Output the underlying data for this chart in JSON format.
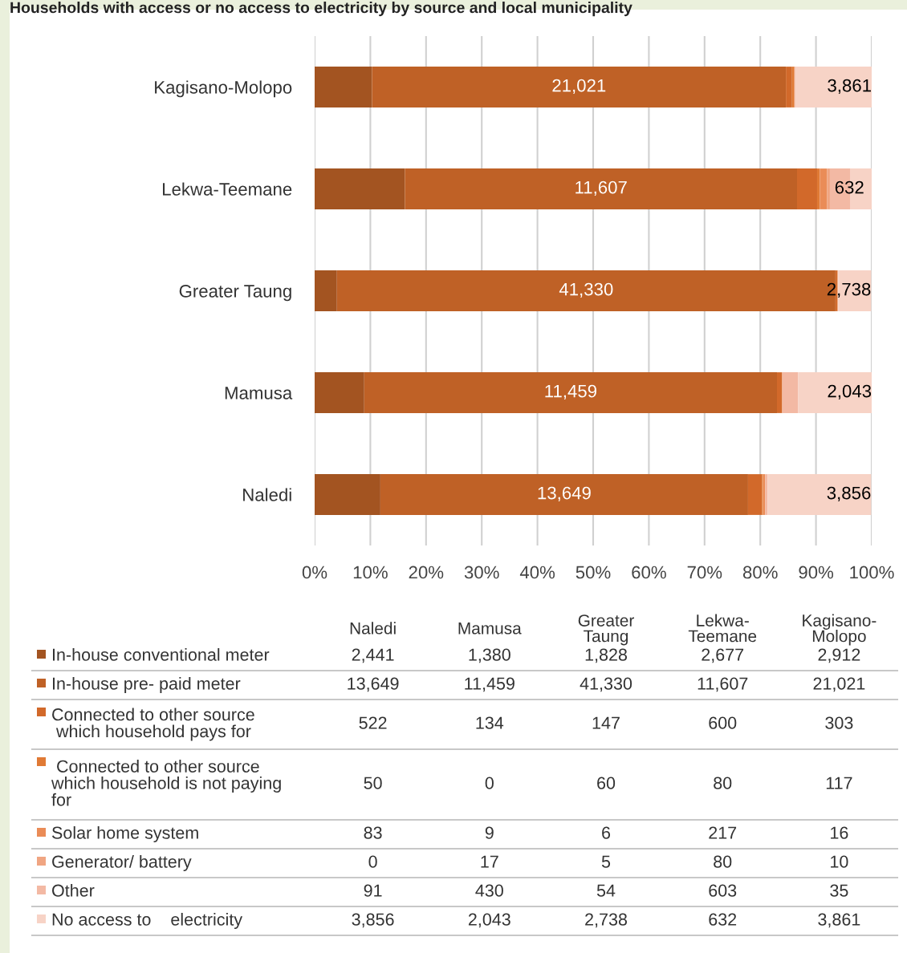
{
  "chart_data": {
    "type": "bar",
    "orientation": "horizontal",
    "stacked": true,
    "title": "Households with access or no access to electricity by source and local municipality",
    "categories": [
      "Kagisano-Molopo",
      "Lekwa-Teemane",
      "Greater Taung",
      "Mamusa",
      "Naledi"
    ],
    "series": [
      {
        "name": "In-house conventional meter",
        "color": "#a35421",
        "values": [
          10.3,
          16.2,
          4.0,
          8.9,
          11.8
        ]
      },
      {
        "name": "In-house pre- paid meter",
        "color": "#bf6126",
        "values": [
          74.3,
          70.4,
          89.5,
          74.1,
          66.0
        ]
      },
      {
        "name": "Connected to other source\n which household pays for",
        "color": "#d2692a",
        "values": [
          1.1,
          3.6,
          0.3,
          0.9,
          2.5
        ]
      },
      {
        "name": " Connected to other source\nwhich household is not paying\nfor",
        "color": "#e07a35",
        "values": [
          0.4,
          0.5,
          0.1,
          0.0,
          0.2
        ]
      },
      {
        "name": "Solar home system",
        "color": "#ea8c57",
        "values": [
          0.1,
          1.3,
          0.0,
          0.0,
          0.4
        ]
      },
      {
        "name": "Generator/ battery",
        "color": "#f0a582",
        "values": [
          0.0,
          0.5,
          0.0,
          0.1,
          0.0
        ]
      },
      {
        "name": "Other",
        "color": "#f3b9a4",
        "values": [
          0.1,
          3.7,
          0.1,
          2.8,
          0.4
        ]
      },
      {
        "name": "No access to    electricity",
        "color": "#f7d3c6",
        "values": [
          13.7,
          3.8,
          5.9,
          13.2,
          18.6
        ]
      }
    ],
    "annotations": [
      "21,021",
      "3,861",
      "11,607",
      "632",
      "41,330",
      "2,738",
      "11,459",
      "2,043",
      "13,649",
      "3,856",
      "2,441",
      "1,380",
      "1,828",
      "2,677",
      "2,912",
      "13,649",
      "11,459",
      "41,330",
      "11,607",
      "21,021",
      "522",
      "134",
      "147",
      "600",
      "303",
      "50",
      "0",
      "60",
      "80",
      "117",
      "83",
      "9",
      "6",
      "217",
      "16",
      "0",
      "17",
      "5",
      "80",
      "10",
      "91",
      "430",
      "54",
      "603",
      "35",
      "3,856",
      "2,043",
      "2,738",
      "632",
      "3,861"
    ],
    "xlim": [
      0,
      100
    ],
    "xticks": [
      {
        "value": 0,
        "label": "0%"
      },
      {
        "value": 10,
        "label": "10%"
      },
      {
        "value": 20,
        "label": "20%"
      },
      {
        "value": 30,
        "label": "30%"
      },
      {
        "value": 40,
        "label": "40%"
      },
      {
        "value": 50,
        "label": "50%"
      },
      {
        "value": 60,
        "label": "60%"
      },
      {
        "value": 70,
        "label": "70%"
      },
      {
        "value": 80,
        "label": "80%"
      },
      {
        "value": 90,
        "label": "90%"
      },
      {
        "value": 100,
        "label": "100%"
      }
    ],
    "grid": "x",
    "legend": "bottom"
  }
}
